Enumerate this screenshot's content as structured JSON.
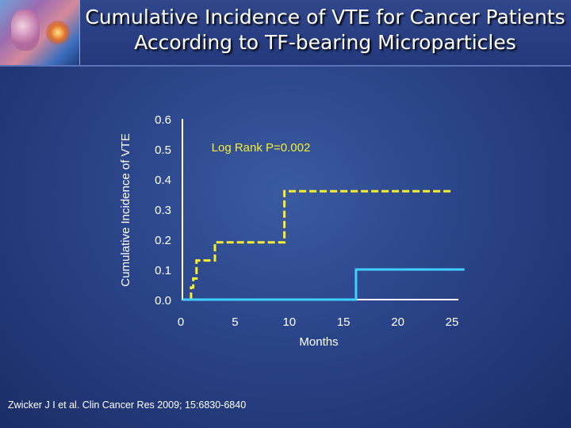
{
  "header": {
    "title_line1": "Cumulative Incidence of VTE for Cancer Patients",
    "title_line2": "According to TF-bearing Microparticles"
  },
  "citation": "Zwicker J I et al. Clin Cancer Res 2009; 15:6830-6840",
  "colors": {
    "axis": "#ffffff",
    "series_dashed": "#f7ee33",
    "series_solid": "#3fd0ff",
    "annotation": "#f7ee33"
  },
  "chart_data": {
    "type": "line",
    "title": "",
    "xlabel": "Months",
    "ylabel": "Cumulative Incidence of VTE",
    "xlim": [
      0,
      25
    ],
    "ylim": [
      0,
      0.6
    ],
    "xticks": [
      "0",
      "5",
      "10",
      "15",
      "20",
      "25"
    ],
    "yticks": [
      "0.0",
      "0.1",
      "0.2",
      "0.3",
      "0.4",
      "0.5",
      "0.6"
    ],
    "xtick_values": [
      0,
      5,
      10,
      15,
      20,
      25
    ],
    "ytick_values": [
      0,
      0.1,
      0.2,
      0.3,
      0.4,
      0.5,
      0.6
    ],
    "annotation": "Log Rank P=0.002",
    "series": [
      {
        "style": "dashed step",
        "color": "#f7ee33",
        "points": [
          [
            0.8,
            0.0
          ],
          [
            0.8,
            0.04
          ],
          [
            1.0,
            0.04
          ],
          [
            1.0,
            0.07
          ],
          [
            1.3,
            0.07
          ],
          [
            1.3,
            0.13
          ],
          [
            3.0,
            0.13
          ],
          [
            3.0,
            0.19
          ],
          [
            9.4,
            0.19
          ],
          [
            9.4,
            0.36
          ],
          [
            25.0,
            0.36
          ]
        ]
      },
      {
        "style": "solid step",
        "color": "#3fd0ff",
        "points": [
          [
            0,
            0.0
          ],
          [
            16.0,
            0.0
          ],
          [
            16.0,
            0.1
          ],
          [
            26.0,
            0.1
          ]
        ]
      }
    ]
  }
}
